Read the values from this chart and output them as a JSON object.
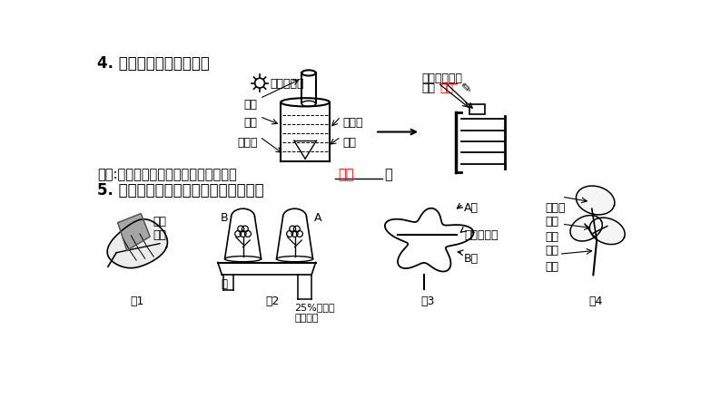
{
  "bg_color": "#ffffff",
  "title4": "4. 金鱼藻在光下产生氧气",
  "conclusion": "结论:金鱼藻在光下进行光合作用释放了",
  "conclusion_fill": "氧气",
  "conclusion_end": "。",
  "title5": "5. 有关光合作用的几个探究实验的比较",
  "labels": {
    "collect_gas": "收集的气体",
    "test_tube": "试管",
    "beaker": "烧杯",
    "goldfish_weed": "金鱼藻",
    "tap_water": "自来水",
    "funnel": "漏斗",
    "revive_burn": "复燃",
    "almost_extinguish1": "快要熄灭的细",
    "almost_extinguish2": "木条",
    "opaque_paper": "不透\n光纸",
    "fig1": "图1",
    "fig2": "图2",
    "fig3": "图3",
    "fig4": "图4",
    "water": "水",
    "naoh": "25%的氢氧\n化钠溶液",
    "A_zone": "A区",
    "B_zone": "B区",
    "cut_vein": "主叶脉剪断",
    "non_green": "非绿色\n部分",
    "green_part": "绿色\n部分",
    "leaf_label": "叶片",
    "A_label": "A",
    "B_label": "B"
  },
  "font_sizes": {
    "title": 12,
    "body": 10.5,
    "small": 9,
    "tiny": 8.5
  },
  "colors": {
    "black": "#000000",
    "red": "#ff0000",
    "gray": "#888888",
    "dark_gray": "#555555",
    "light_gray": "#cccccc"
  }
}
